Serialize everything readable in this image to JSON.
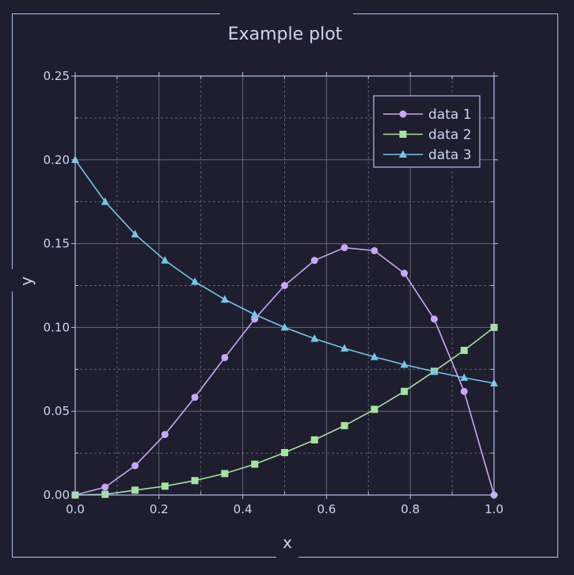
{
  "chart_data": {
    "type": "line",
    "title": "Example plot",
    "xlabel": "x",
    "ylabel": "y",
    "xlim": [
      0.0,
      1.0
    ],
    "ylim": [
      0.0,
      0.25
    ],
    "x_ticks": [
      "0.0",
      "0.2",
      "0.4",
      "0.6",
      "0.8",
      "1.0"
    ],
    "y_ticks": [
      "0.00",
      "0.05",
      "0.10",
      "0.15",
      "0.20",
      "0.25"
    ],
    "grid": true,
    "legend_position": "top-right",
    "x": [
      0.0,
      0.0714,
      0.1429,
      0.2143,
      0.2857,
      0.3571,
      0.4286,
      0.5,
      0.5714,
      0.6429,
      0.7143,
      0.7857,
      0.8571,
      0.9286,
      1.0
    ],
    "series": [
      {
        "name": "data 1",
        "marker": "circle",
        "color": "#cba6f7",
        "values": [
          0.0,
          0.0047,
          0.0175,
          0.0361,
          0.0583,
          0.082,
          0.105,
          0.125,
          0.14,
          0.1476,
          0.1458,
          0.1323,
          0.105,
          0.0618,
          0.0
        ]
      },
      {
        "name": "data 2",
        "marker": "square",
        "color": "#a6e3a1",
        "values": [
          0.0,
          0.0004,
          0.0029,
          0.0053,
          0.0086,
          0.0128,
          0.0184,
          0.0253,
          0.0329,
          0.0414,
          0.0511,
          0.0618,
          0.0738,
          0.0863,
          0.1
        ]
      },
      {
        "name": "data 3",
        "marker": "triangle",
        "color": "#74c7ec",
        "values": [
          0.2,
          0.175,
          0.1556,
          0.14,
          0.1273,
          0.1167,
          0.1077,
          0.1,
          0.0933,
          0.0875,
          0.0824,
          0.0778,
          0.0737,
          0.07,
          0.0667
        ]
      }
    ]
  },
  "colors": {
    "background": "#1e1e2e",
    "axes": "#b4bef0",
    "grid": "#6c7086",
    "text": "#cdd6f4"
  }
}
